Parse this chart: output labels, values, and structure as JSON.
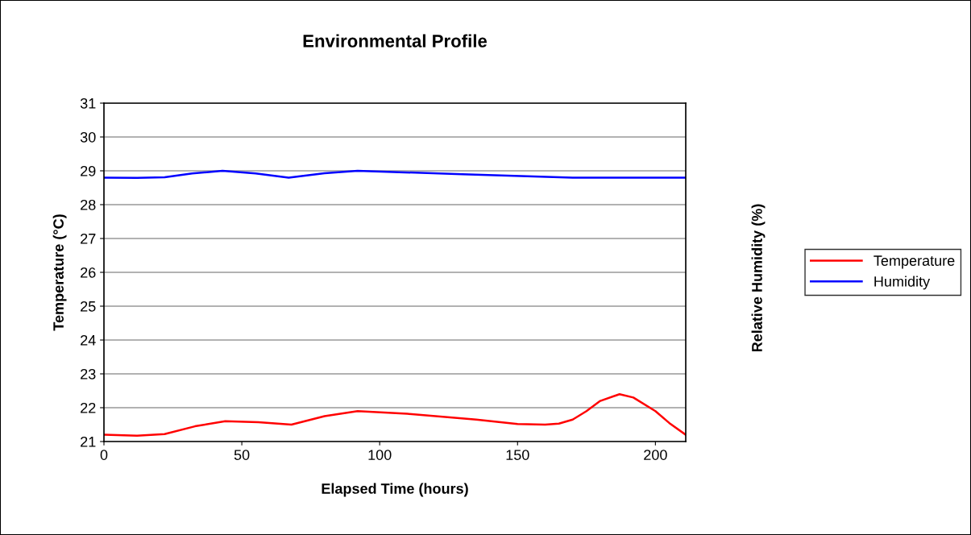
{
  "chart_data": {
    "type": "line",
    "title": "Environmental Profile",
    "xlabel": "Elapsed Time (hours)",
    "ylabel": "Temperature (°C)",
    "y2label": "Relative Humidity (%)",
    "xlim": [
      0,
      211
    ],
    "xticks": [
      0,
      50,
      100,
      150,
      200
    ],
    "ylim": [
      21,
      31
    ],
    "yticks": [
      21,
      22,
      23,
      24,
      25,
      26,
      27,
      28,
      29,
      30,
      31
    ],
    "grid": "y",
    "legend": "right",
    "marker": "none",
    "line_style": "solid",
    "series": [
      {
        "name": "Temperature",
        "color": "#ff0000",
        "x": [
          0,
          12,
          22,
          33,
          44,
          56,
          68,
          80,
          92,
          110,
          135,
          150,
          160,
          165,
          170,
          175,
          180,
          187,
          192,
          200,
          205,
          211
        ],
        "values": [
          21.2,
          21.17,
          21.22,
          21.45,
          21.6,
          21.57,
          21.5,
          21.75,
          21.9,
          21.82,
          21.65,
          21.52,
          21.5,
          21.53,
          21.65,
          21.9,
          22.2,
          22.4,
          22.3,
          21.9,
          21.55,
          21.2
        ]
      },
      {
        "name": "Humidity",
        "color": "#0000ff",
        "x": [
          0,
          12,
          22,
          32,
          43,
          55,
          67,
          80,
          92,
          130,
          170,
          211
        ],
        "values": [
          28.8,
          28.79,
          28.81,
          28.92,
          29.0,
          28.92,
          28.8,
          28.93,
          29.0,
          28.9,
          28.8,
          28.8
        ]
      }
    ]
  }
}
